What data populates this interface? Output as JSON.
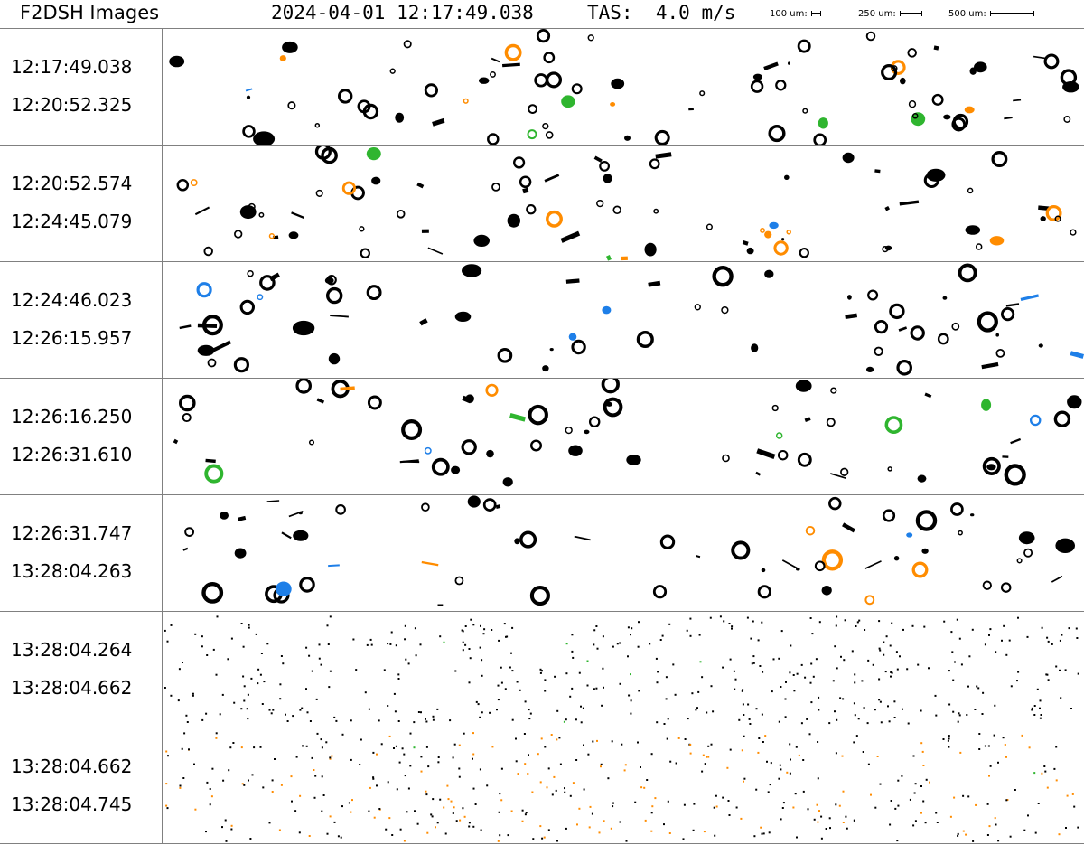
{
  "header": {
    "title": "F2DSH Images",
    "timestamp": "2024-04-01_12:17:49.038",
    "tas_label": "TAS:",
    "tas_value": "4.0 m/s",
    "scale_bars": [
      {
        "label": "100 um:",
        "microns": 100
      },
      {
        "label": "250 um:",
        "microns": 250
      },
      {
        "label": "500 um:",
        "microns": 500
      }
    ]
  },
  "colors": {
    "particle": "#000000",
    "orange": "#ff8c00",
    "blue": "#1e7fe8",
    "green": "#2fb52f",
    "red": "#e01010",
    "divider": "#808080"
  },
  "strips": [
    {
      "start": "12:17:49.038",
      "end": "12:20:52.325",
      "kind": "mixed"
    },
    {
      "start": "12:20:52.574",
      "end": "12:24:45.079",
      "kind": "mixed"
    },
    {
      "start": "12:24:46.023",
      "end": "12:26:15.957",
      "kind": "rings"
    },
    {
      "start": "12:26:16.250",
      "end": "12:26:31.610",
      "kind": "rings"
    },
    {
      "start": "12:26:31.747",
      "end": "13:28:04.263",
      "kind": "rings"
    },
    {
      "start": "13:28:04.264",
      "end": "13:28:04.662",
      "kind": "dots"
    },
    {
      "start": "13:28:04.662",
      "end": "13:28:04.745",
      "kind": "dots"
    }
  ]
}
